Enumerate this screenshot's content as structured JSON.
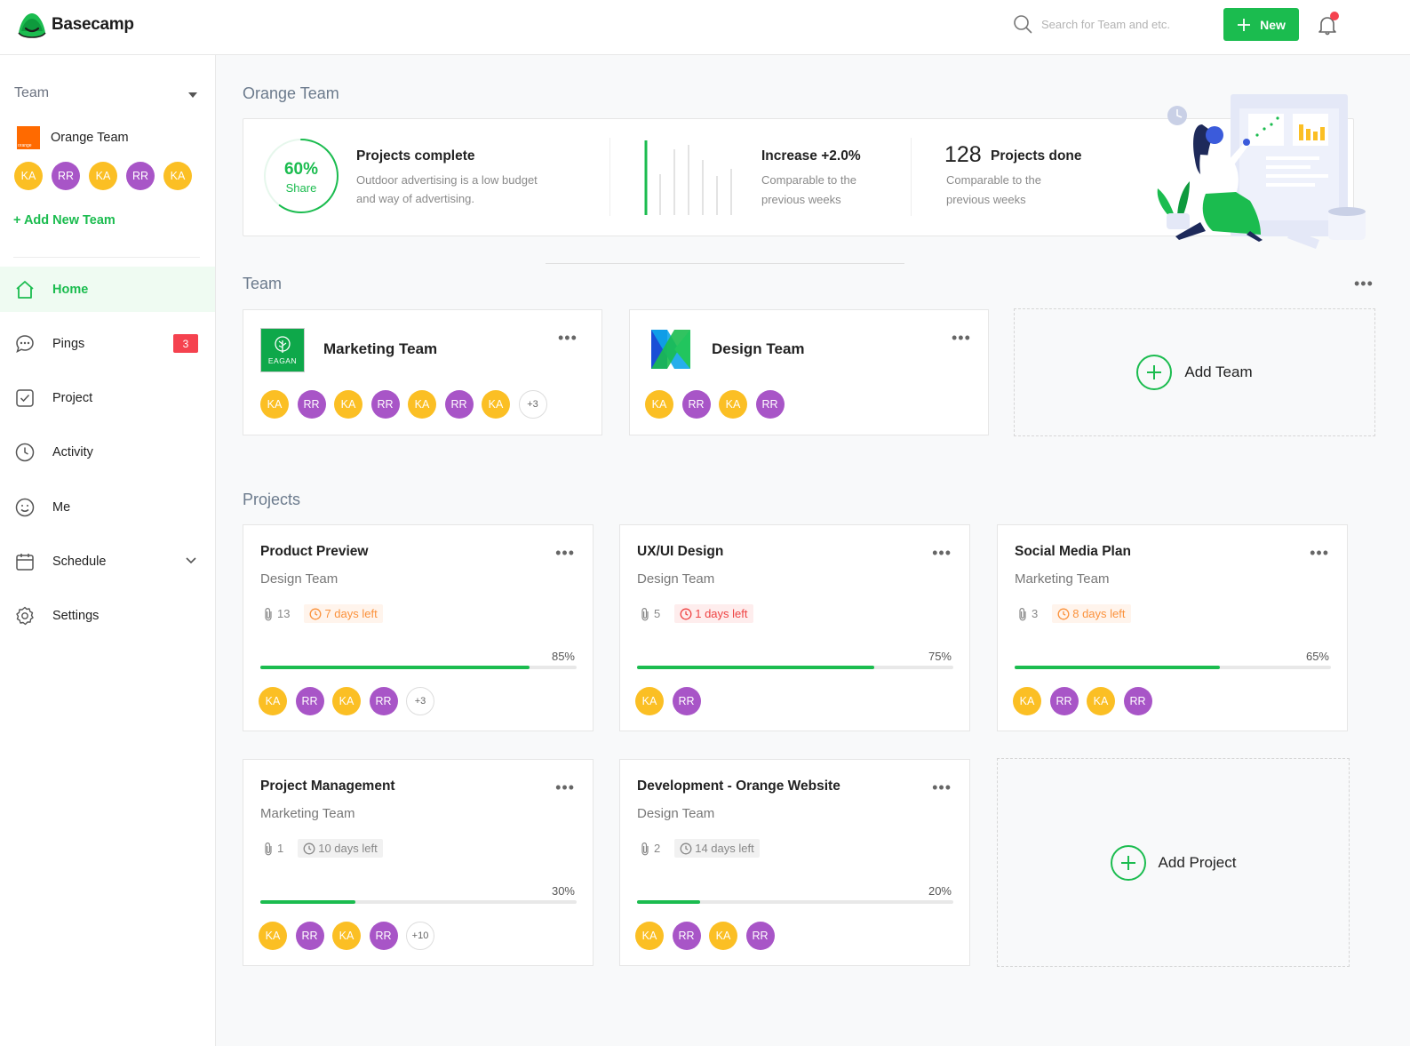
{
  "header": {
    "app_name": "Basecamp",
    "search_placeholder": "Search for Team and etc.",
    "new_label": "New"
  },
  "sidebar": {
    "team_label": "Team",
    "org": {
      "logo_text": "orange",
      "name": "Orange Team",
      "members": [
        "KA",
        "RR",
        "KA",
        "RR",
        "KA"
      ]
    },
    "add_team_label": "+ Add New Team",
    "nav": [
      {
        "id": "home",
        "label": "Home",
        "icon": "home-icon",
        "active": true
      },
      {
        "id": "pings",
        "label": "Pings",
        "icon": "chat-icon",
        "badge": "3"
      },
      {
        "id": "project",
        "label": "Project",
        "icon": "checkbox-icon"
      },
      {
        "id": "activity",
        "label": "Activity",
        "icon": "clock-icon"
      },
      {
        "id": "me",
        "label": "Me",
        "icon": "smiley-icon"
      },
      {
        "id": "schedule",
        "label": "Schedule",
        "icon": "calendar-icon",
        "expandable": true
      },
      {
        "id": "settings",
        "label": "Settings",
        "icon": "gear-icon"
      }
    ]
  },
  "overview": {
    "title": "Orange Team",
    "stats": {
      "share_pct": "60%",
      "share_label": "Share",
      "share_value": 0.6,
      "projects_complete_title": "Projects complete",
      "projects_complete_desc_1": "Outdoor advertising is a low budget",
      "projects_complete_desc_2": "and way of advertising.",
      "increase_title": "Increase +2.0%",
      "increase_desc_1": "Comparable to the",
      "increase_desc_2": "previous weeks",
      "done_count": "128",
      "done_title": "Projects done",
      "done_desc_1": "Comparable to the",
      "done_desc_2": "previous weeks"
    }
  },
  "teams": {
    "title": "Team",
    "cards": [
      {
        "name": "Marketing Team",
        "logo_text": "EAGAN",
        "members": [
          "KA",
          "RR",
          "KA",
          "RR",
          "KA",
          "RR",
          "KA"
        ],
        "more": "+3"
      },
      {
        "name": "Design Team",
        "members": [
          "KA",
          "RR",
          "KA",
          "RR"
        ]
      }
    ],
    "add_label": "Add Team"
  },
  "projects": {
    "title": "Projects",
    "cards": [
      {
        "title": "Product Preview",
        "team": "Design Team",
        "attachments": "13",
        "due": "7 days left",
        "due_style": "orange",
        "progress_label": "85%",
        "progress": 0.85,
        "members": [
          "KA",
          "RR",
          "KA",
          "RR"
        ],
        "more": "+3"
      },
      {
        "title": "UX/UI Design",
        "team": "Design Team",
        "attachments": "5",
        "due": "1 days left",
        "due_style": "red",
        "progress_label": "75%",
        "progress": 0.75,
        "members": [
          "KA",
          "RR"
        ]
      },
      {
        "title": "Social Media Plan",
        "team": "Marketing Team",
        "attachments": "3",
        "due": "8 days left",
        "due_style": "orange",
        "progress_label": "65%",
        "progress": 0.65,
        "members": [
          "KA",
          "RR",
          "KA",
          "RR"
        ]
      },
      {
        "title": "Project Management",
        "team": "Marketing Team",
        "attachments": "1",
        "due": "10 days left",
        "due_style": "gray",
        "progress_label": "30%",
        "progress": 0.3,
        "members": [
          "KA",
          "RR",
          "KA",
          "RR"
        ],
        "more": "+10"
      },
      {
        "title": "Development - Orange Website",
        "team": "Design Team",
        "attachments": "2",
        "due": "14 days left",
        "due_style": "gray",
        "progress_label": "20%",
        "progress": 0.2,
        "members": [
          "KA",
          "RR",
          "KA",
          "RR"
        ]
      }
    ],
    "add_label": "Add Project"
  }
}
